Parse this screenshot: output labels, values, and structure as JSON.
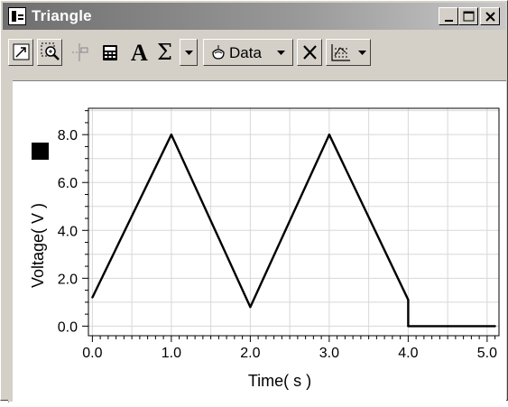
{
  "window": {
    "title": "Triangle",
    "controls": {
      "minimize": "_",
      "maximize": "□",
      "close": "×"
    }
  },
  "toolbar": {
    "data_label": "Data",
    "sigma_label": "Σ",
    "text_label": "A",
    "buttons": [
      "autoscale-icon",
      "zoom-icon",
      "examine-icon",
      "calculator-icon",
      "text-annotation-icon",
      "statistics-icon",
      "data-browser-icon",
      "remove-icon",
      "graph-options-icon"
    ]
  },
  "chart_data": {
    "type": "line",
    "xlabel": "Time( s )",
    "ylabel": "Voltage( V )",
    "xlim": [
      -0.05,
      5.15
    ],
    "ylim": [
      -0.4,
      9.1
    ],
    "x_ticks": [
      "0.0",
      "1.0",
      "2.0",
      "3.0",
      "4.0",
      "5.0"
    ],
    "x_tick_values": [
      0,
      1,
      2,
      3,
      4,
      5
    ],
    "y_ticks": [
      "0.0",
      "2.0",
      "4.0",
      "6.0",
      "8.0"
    ],
    "y_tick_values": [
      0,
      2,
      4,
      6,
      8
    ],
    "grid": true,
    "series": [
      {
        "color": "#000000",
        "x": [
          0.0,
          1.0,
          2.0,
          3.0,
          4.0,
          4.0,
          5.1
        ],
        "y": [
          1.2,
          8.0,
          0.8,
          8.0,
          1.1,
          0.0,
          0.0
        ]
      }
    ],
    "legend_marker_color": "#000000"
  }
}
